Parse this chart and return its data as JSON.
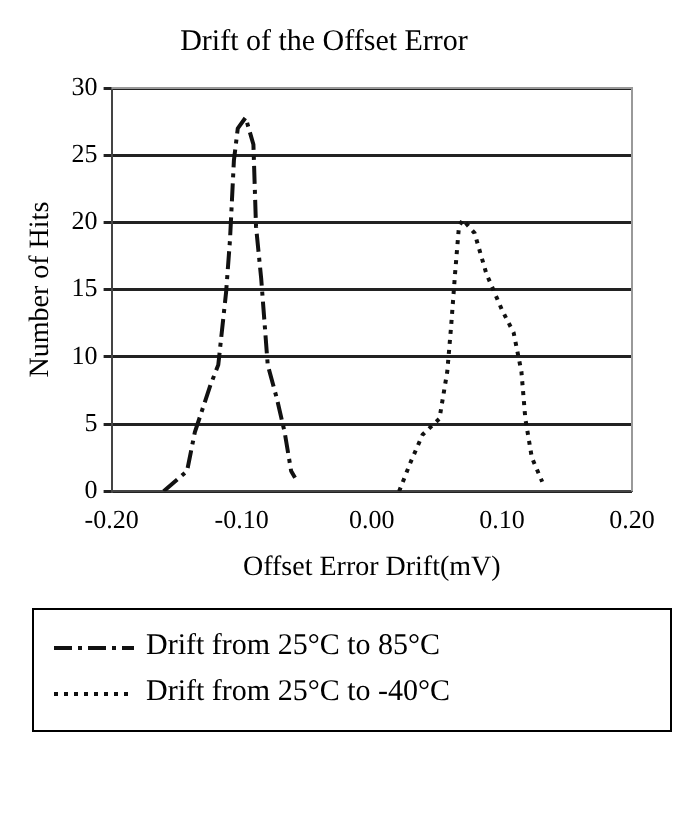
{
  "chart_data": {
    "type": "line",
    "title": "Drift of the Offset Error",
    "xlabel": "Offset Error Drift(mV)",
    "ylabel": "Number of Hits",
    "xlim": [
      -0.2,
      0.2
    ],
    "xticks": [
      {
        "value": -0.2,
        "label": "-0.20"
      },
      {
        "value": -0.1,
        "label": "-0.10"
      },
      {
        "value": 0,
        "label": "0.00"
      },
      {
        "value": 0.1,
        "label": "0.10"
      },
      {
        "value": 0.2,
        "label": "0.20"
      }
    ],
    "ylim": [
      0,
      30
    ],
    "yticks": [
      0,
      5,
      10,
      15,
      20,
      25,
      30
    ],
    "grid": "y",
    "legend": "bottom",
    "marker": "none",
    "series": [
      {
        "name": "Drift from 25°C to 85°C",
        "color": "#111111",
        "line_style": "dashed",
        "x": [
          -0.16,
          -0.142,
          -0.136,
          -0.124,
          -0.118,
          -0.112,
          -0.109,
          -0.106,
          -0.103,
          -0.097,
          -0.091,
          -0.089,
          -0.085,
          -0.08,
          -0.073,
          -0.067,
          -0.062,
          -0.059
        ],
        "values": [
          0,
          1.5,
          4.4,
          7.9,
          9.4,
          14.8,
          18.7,
          24.6,
          27,
          27.8,
          25.8,
          19.7,
          15.8,
          9.4,
          6.9,
          4.4,
          1.5,
          1
        ]
      },
      {
        "name": "Drift from 25°C to -40°C",
        "color": "#111111",
        "line_style": "dotted",
        "x": [
          0.021,
          0.03,
          0.039,
          0.052,
          0.058,
          0.061,
          0.064,
          0.067,
          0.07,
          0.079,
          0.088,
          0.1,
          0.109,
          0.115,
          0.118,
          0.123,
          0.131
        ],
        "values": [
          0,
          2.2,
          4.2,
          5.4,
          8.9,
          12.3,
          16.2,
          19.7,
          20.2,
          19.2,
          16.2,
          13.5,
          11.8,
          8.9,
          5.4,
          2.5,
          0.7
        ]
      }
    ]
  }
}
